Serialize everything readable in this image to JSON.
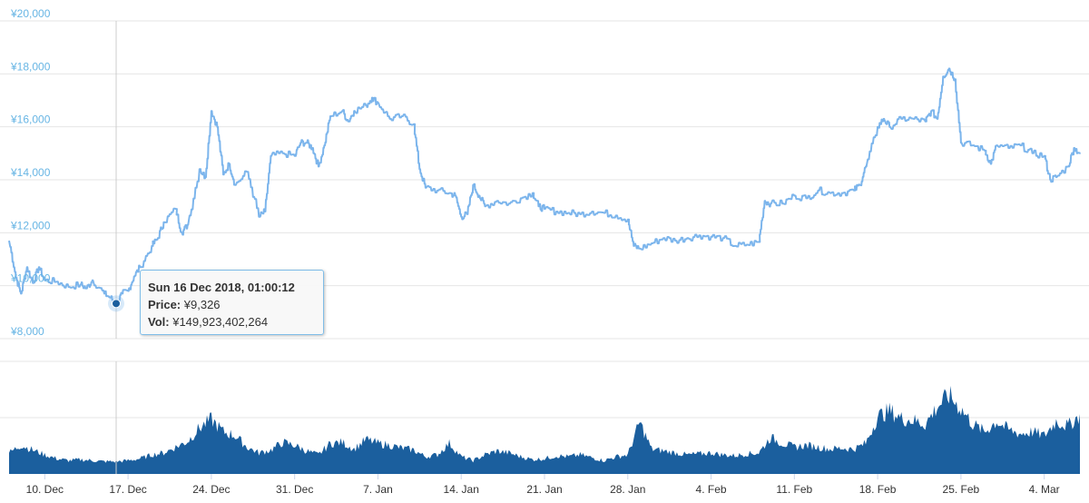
{
  "chart_data": [
    {
      "type": "line",
      "name": "price",
      "y_unit": "¥",
      "ylim": [
        8000,
        20000
      ],
      "y_ticks": [
        "¥20,000",
        "¥18,000",
        "¥16,000",
        "¥14,000",
        "¥12,000",
        "¥10,000",
        "¥8,000"
      ],
      "y_tick_values": [
        20000,
        18000,
        16000,
        14000,
        12000,
        10000,
        8000
      ],
      "x_range": [
        "2018-12-07",
        "2019-03-07"
      ],
      "x_ticks": [
        "10. Dec",
        "17. Dec",
        "24. Dec",
        "31. Dec",
        "7. Jan",
        "14. Jan",
        "21. Jan",
        "28. Jan",
        "4. Feb",
        "11. Feb",
        "18. Feb",
        "25. Feb",
        "4. Mar"
      ],
      "x_tick_dates": [
        "2018-12-10",
        "2018-12-17",
        "2018-12-24",
        "2018-12-31",
        "2019-01-07",
        "2019-01-14",
        "2019-01-21",
        "2019-01-28",
        "2019-02-04",
        "2019-02-11",
        "2019-02-18",
        "2019-02-25",
        "2019-03-04"
      ],
      "grid": true,
      "color": "#7cb5ec",
      "points": [
        [
          "2018-12-07",
          11700
        ],
        [
          "2018-12-07T14:00",
          10300
        ],
        [
          "2018-12-08",
          9700
        ],
        [
          "2018-12-08T12:00",
          10700
        ],
        [
          "2018-12-09",
          10100
        ],
        [
          "2018-12-09T12:00",
          10700
        ],
        [
          "2018-12-10",
          10200
        ],
        [
          "2018-12-11",
          10150
        ],
        [
          "2018-12-12",
          9950
        ],
        [
          "2018-12-13",
          10050
        ],
        [
          "2018-12-13T12:00",
          9900
        ],
        [
          "2018-12-14",
          10200
        ],
        [
          "2018-12-15",
          9700
        ],
        [
          "2018-12-15T12:00",
          9550
        ],
        [
          "2018-12-16",
          9326
        ],
        [
          "2018-12-16T12:00",
          9700
        ],
        [
          "2018-12-17",
          9800
        ],
        [
          "2018-12-17T12:00",
          10350
        ],
        [
          "2018-12-18",
          10700
        ],
        [
          "2018-12-19",
          11500
        ],
        [
          "2018-12-19T12:00",
          11800
        ],
        [
          "2018-12-20",
          12400
        ],
        [
          "2018-12-21",
          12900
        ],
        [
          "2018-12-21T12:00",
          12000
        ],
        [
          "2018-12-22",
          12300
        ],
        [
          "2018-12-23",
          14400
        ],
        [
          "2018-12-23T12:00",
          14100
        ],
        [
          "2018-12-24",
          16600
        ],
        [
          "2018-12-24T12:00",
          16000
        ],
        [
          "2018-12-25",
          14200
        ],
        [
          "2018-12-25T12:00",
          14600
        ],
        [
          "2018-12-26",
          13800
        ],
        [
          "2018-12-27",
          14300
        ],
        [
          "2018-12-28",
          12600
        ],
        [
          "2018-12-28T12:00",
          12800
        ],
        [
          "2018-12-29",
          14900
        ],
        [
          "2018-12-30",
          15000
        ],
        [
          "2018-12-31",
          14900
        ],
        [
          "2018-12-31T12:00",
          15400
        ],
        [
          "2019-01-01",
          15400
        ],
        [
          "2019-01-01T12:00",
          15200
        ],
        [
          "2019-01-02",
          14500
        ],
        [
          "2019-01-02T12:00",
          15300
        ],
        [
          "2019-01-03",
          16400
        ],
        [
          "2019-01-04",
          16600
        ],
        [
          "2019-01-04T12:00",
          16200
        ],
        [
          "2019-01-05",
          16600
        ],
        [
          "2019-01-06",
          16800
        ],
        [
          "2019-01-06T12:00",
          17100
        ],
        [
          "2019-01-07",
          16900
        ],
        [
          "2019-01-08",
          16300
        ],
        [
          "2019-01-09",
          16400
        ],
        [
          "2019-01-10",
          16100
        ],
        [
          "2019-01-10T12:00",
          14400
        ],
        [
          "2019-01-11",
          13700
        ],
        [
          "2019-01-12",
          13600
        ],
        [
          "2019-01-13",
          13500
        ],
        [
          "2019-01-13T12:00",
          13400
        ],
        [
          "2019-01-14",
          12600
        ],
        [
          "2019-01-14T12:00",
          12700
        ],
        [
          "2019-01-15",
          13800
        ],
        [
          "2019-01-15T12:00",
          13400
        ],
        [
          "2019-01-16",
          13000
        ],
        [
          "2019-01-17",
          13200
        ],
        [
          "2019-01-18",
          13100
        ],
        [
          "2019-01-19",
          13300
        ],
        [
          "2019-01-20",
          13500
        ],
        [
          "2019-01-20T12:00",
          13000
        ],
        [
          "2019-01-21",
          12900
        ],
        [
          "2019-01-22",
          12800
        ],
        [
          "2019-01-23",
          12750
        ],
        [
          "2019-01-24",
          12700
        ],
        [
          "2019-01-25",
          12800
        ],
        [
          "2019-01-26",
          12750
        ],
        [
          "2019-01-27",
          12650
        ],
        [
          "2019-01-28",
          12500
        ],
        [
          "2019-01-28T12:00",
          11500
        ],
        [
          "2019-01-29",
          11400
        ],
        [
          "2019-01-30",
          11600
        ],
        [
          "2019-01-31",
          11800
        ],
        [
          "2019-02-01",
          11700
        ],
        [
          "2019-02-02",
          11800
        ],
        [
          "2019-02-03",
          11900
        ],
        [
          "2019-02-04",
          11850
        ],
        [
          "2019-02-05",
          11800
        ],
        [
          "2019-02-06",
          11500
        ],
        [
          "2019-02-07",
          11550
        ],
        [
          "2019-02-08",
          11650
        ],
        [
          "2019-02-08T12:00",
          13200
        ],
        [
          "2019-02-09",
          13100
        ],
        [
          "2019-02-10",
          13100
        ],
        [
          "2019-02-11",
          13400
        ],
        [
          "2019-02-12",
          13300
        ],
        [
          "2019-02-13",
          13600
        ],
        [
          "2019-02-14",
          13500
        ],
        [
          "2019-02-15",
          13500
        ],
        [
          "2019-02-16",
          13600
        ],
        [
          "2019-02-16T12:00",
          13800
        ],
        [
          "2019-02-17",
          14500
        ],
        [
          "2019-02-18",
          16000
        ],
        [
          "2019-02-18T12:00",
          16300
        ],
        [
          "2019-02-19",
          16000
        ],
        [
          "2019-02-20",
          16300
        ],
        [
          "2019-02-21",
          16300
        ],
        [
          "2019-02-22",
          16200
        ],
        [
          "2019-02-22T12:00",
          16600
        ],
        [
          "2019-02-23",
          16300
        ],
        [
          "2019-02-23T12:00",
          17900
        ],
        [
          "2019-02-24",
          18200
        ],
        [
          "2019-02-24T12:00",
          17800
        ],
        [
          "2019-02-25",
          15400
        ],
        [
          "2019-02-26",
          15300
        ],
        [
          "2019-02-27",
          15100
        ],
        [
          "2019-02-27T12:00",
          14600
        ],
        [
          "2019-02-28",
          15300
        ],
        [
          "2019-03-01",
          15200
        ],
        [
          "2019-03-02",
          15300
        ],
        [
          "2019-03-03",
          15000
        ],
        [
          "2019-03-04",
          14900
        ],
        [
          "2019-03-04T12:00",
          14000
        ],
        [
          "2019-03-05",
          14100
        ],
        [
          "2019-03-06",
          14500
        ],
        [
          "2019-03-06T12:00",
          15200
        ],
        [
          "2019-03-07",
          15000
        ]
      ]
    },
    {
      "type": "area",
      "name": "volume",
      "color": "#1b5f9e",
      "scale": "relative, 1.0 = tallest bar",
      "points": [
        [
          "2018-12-07",
          0.22
        ],
        [
          "2018-12-08",
          0.3
        ],
        [
          "2018-12-09",
          0.25
        ],
        [
          "2018-12-10",
          0.2
        ],
        [
          "2018-12-11",
          0.16
        ],
        [
          "2018-12-12",
          0.14
        ],
        [
          "2018-12-13",
          0.15
        ],
        [
          "2018-12-14",
          0.14
        ],
        [
          "2018-12-15",
          0.13
        ],
        [
          "2018-12-16",
          0.13
        ],
        [
          "2018-12-17",
          0.14
        ],
        [
          "2018-12-18",
          0.16
        ],
        [
          "2018-12-19",
          0.2
        ],
        [
          "2018-12-20",
          0.22
        ],
        [
          "2018-12-21",
          0.28
        ],
        [
          "2018-12-22",
          0.34
        ],
        [
          "2018-12-23",
          0.48
        ],
        [
          "2018-12-24",
          0.57
        ],
        [
          "2018-12-25",
          0.44
        ],
        [
          "2018-12-26",
          0.4
        ],
        [
          "2018-12-27",
          0.28
        ],
        [
          "2018-12-28",
          0.22
        ],
        [
          "2018-12-29",
          0.25
        ],
        [
          "2018-12-30",
          0.33
        ],
        [
          "2018-12-31",
          0.3
        ],
        [
          "2019-01-01",
          0.24
        ],
        [
          "2019-01-02",
          0.2
        ],
        [
          "2019-01-03",
          0.32
        ],
        [
          "2019-01-04",
          0.33
        ],
        [
          "2019-01-05",
          0.26
        ],
        [
          "2019-01-06",
          0.36
        ],
        [
          "2019-01-07",
          0.32
        ],
        [
          "2019-01-08",
          0.3
        ],
        [
          "2019-01-09",
          0.27
        ],
        [
          "2019-01-10",
          0.25
        ],
        [
          "2019-01-11",
          0.18
        ],
        [
          "2019-01-12",
          0.2
        ],
        [
          "2019-01-13",
          0.32
        ],
        [
          "2019-01-14",
          0.18
        ],
        [
          "2019-01-15",
          0.14
        ],
        [
          "2019-01-16",
          0.2
        ],
        [
          "2019-01-17",
          0.24
        ],
        [
          "2019-01-18",
          0.22
        ],
        [
          "2019-01-19",
          0.18
        ],
        [
          "2019-01-20",
          0.15
        ],
        [
          "2019-01-21",
          0.16
        ],
        [
          "2019-01-22",
          0.19
        ],
        [
          "2019-01-23",
          0.18
        ],
        [
          "2019-01-24",
          0.2
        ],
        [
          "2019-01-25",
          0.17
        ],
        [
          "2019-01-26",
          0.14
        ],
        [
          "2019-01-27",
          0.18
        ],
        [
          "2019-01-28",
          0.2
        ],
        [
          "2019-01-29",
          0.54
        ],
        [
          "2019-01-30",
          0.26
        ],
        [
          "2019-01-31",
          0.24
        ],
        [
          "2019-02-01",
          0.22
        ],
        [
          "2019-02-02",
          0.2
        ],
        [
          "2019-02-03",
          0.21
        ],
        [
          "2019-02-04",
          0.22
        ],
        [
          "2019-02-05",
          0.2
        ],
        [
          "2019-02-06",
          0.19
        ],
        [
          "2019-02-07",
          0.21
        ],
        [
          "2019-02-08",
          0.22
        ],
        [
          "2019-02-09",
          0.38
        ],
        [
          "2019-02-10",
          0.32
        ],
        [
          "2019-02-11",
          0.28
        ],
        [
          "2019-02-12",
          0.3
        ],
        [
          "2019-02-13",
          0.28
        ],
        [
          "2019-02-14",
          0.26
        ],
        [
          "2019-02-15",
          0.27
        ],
        [
          "2019-02-16",
          0.26
        ],
        [
          "2019-02-17",
          0.32
        ],
        [
          "2019-02-18",
          0.6
        ],
        [
          "2019-02-19",
          0.66
        ],
        [
          "2019-02-20",
          0.58
        ],
        [
          "2019-02-21",
          0.56
        ],
        [
          "2019-02-22",
          0.52
        ],
        [
          "2019-02-23",
          0.7
        ],
        [
          "2019-02-24",
          0.82
        ],
        [
          "2019-02-25",
          0.68
        ],
        [
          "2019-02-26",
          0.52
        ],
        [
          "2019-02-27",
          0.44
        ],
        [
          "2019-02-28",
          0.55
        ],
        [
          "2019-03-01",
          0.46
        ],
        [
          "2019-03-02",
          0.42
        ],
        [
          "2019-03-03",
          0.44
        ],
        [
          "2019-03-04",
          0.4
        ],
        [
          "2019-03-05",
          0.55
        ],
        [
          "2019-03-06",
          0.5
        ],
        [
          "2019-03-07",
          0.62
        ]
      ]
    }
  ],
  "tooltip": {
    "date": "Sun 16 Dec 2018, 01:00:12",
    "price_label": "Price:",
    "price_value": "¥9,326",
    "vol_label": "Vol:",
    "vol_value": "¥149,923,402,264",
    "point_date": "2018-12-16",
    "point_value": 9326
  }
}
